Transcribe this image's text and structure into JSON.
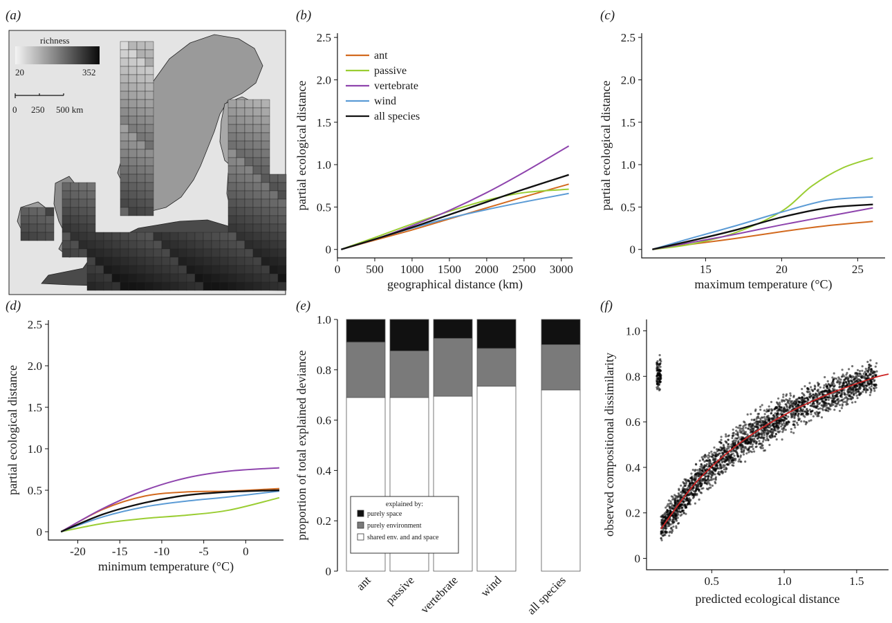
{
  "panels": {
    "a": "(a)",
    "b": "(b)",
    "c": "(c)",
    "d": "(d)",
    "e": "(e)",
    "f": "(f)"
  },
  "map": {
    "colorbar_title": "richness",
    "colorbar_min": "20",
    "colorbar_max": "352",
    "scale_ticks": [
      "0",
      "250",
      "500 km"
    ]
  },
  "colors": {
    "ant": "#d2691e",
    "passive": "#9acd32",
    "vertebrate": "#8e44ad",
    "wind": "#5b9bd5",
    "all species": "#111111",
    "purely_space": "#111111",
    "purely_environment": "#7a7a7a",
    "shared": "#ffffff",
    "fit_line": "#cc2222"
  },
  "chart_data": [
    {
      "id": "b",
      "type": "line",
      "xlabel": "geographical distance (km)",
      "ylabel": "partial ecological distance",
      "xlim": [
        0,
        3150
      ],
      "ylim": [
        -0.1,
        2.55
      ],
      "xticks": [
        0,
        500,
        1000,
        1500,
        2000,
        2500,
        3000
      ],
      "yticks": [
        0,
        0.5,
        1.0,
        1.5,
        2.0,
        2.5
      ],
      "ytick_labels": [
        "0",
        "0.5",
        "1.0",
        "1.5",
        "2.0",
        "2.5"
      ],
      "legend": "top-left",
      "series": [
        {
          "name": "ant",
          "x": [
            50,
            500,
            1000,
            1500,
            2000,
            2500,
            3100
          ],
          "y": [
            0,
            0.11,
            0.23,
            0.36,
            0.49,
            0.62,
            0.77
          ]
        },
        {
          "name": "passive",
          "x": [
            50,
            500,
            1000,
            1500,
            2000,
            2500,
            3100
          ],
          "y": [
            0,
            0.14,
            0.3,
            0.45,
            0.58,
            0.67,
            0.71
          ]
        },
        {
          "name": "vertebrate",
          "x": [
            50,
            500,
            1000,
            1500,
            2000,
            2500,
            3100
          ],
          "y": [
            0,
            0.12,
            0.28,
            0.46,
            0.67,
            0.91,
            1.22
          ]
        },
        {
          "name": "wind",
          "x": [
            50,
            500,
            1000,
            1500,
            2000,
            2500,
            3100
          ],
          "y": [
            0,
            0.12,
            0.25,
            0.37,
            0.47,
            0.56,
            0.66
          ]
        },
        {
          "name": "all species",
          "x": [
            50,
            500,
            1000,
            1500,
            2000,
            2500,
            3100
          ],
          "y": [
            0,
            0.12,
            0.26,
            0.41,
            0.56,
            0.71,
            0.88
          ]
        }
      ]
    },
    {
      "id": "c",
      "type": "line",
      "xlabel": "maximum temperature (°C)",
      "ylabel": "partial ecological distance",
      "xlim": [
        10.8,
        26.8
      ],
      "ylim": [
        -0.1,
        2.55
      ],
      "xticks": [
        15,
        20,
        25
      ],
      "yticks": [
        0,
        0.5,
        1.0,
        1.5,
        2.0,
        2.5
      ],
      "ytick_labels": [
        "0",
        "0.5",
        "1.0",
        "1.5",
        "2.0",
        "2.5"
      ],
      "series": [
        {
          "name": "ant",
          "x": [
            11.5,
            14,
            17,
            20,
            23,
            26
          ],
          "y": [
            0,
            0.06,
            0.13,
            0.21,
            0.28,
            0.33
          ]
        },
        {
          "name": "passive",
          "x": [
            11.5,
            14,
            17,
            20,
            22,
            24,
            26
          ],
          "y": [
            0,
            0.06,
            0.2,
            0.45,
            0.75,
            0.96,
            1.08
          ]
        },
        {
          "name": "vertebrate",
          "x": [
            11.5,
            14,
            17,
            20,
            23,
            26
          ],
          "y": [
            0,
            0.08,
            0.18,
            0.29,
            0.39,
            0.49
          ]
        },
        {
          "name": "wind",
          "x": [
            11.5,
            14,
            17,
            20,
            23,
            26
          ],
          "y": [
            0,
            0.13,
            0.28,
            0.44,
            0.58,
            0.62
          ]
        },
        {
          "name": "all species",
          "x": [
            11.5,
            14,
            17,
            20,
            23,
            26
          ],
          "y": [
            0,
            0.1,
            0.23,
            0.38,
            0.49,
            0.53
          ]
        }
      ]
    },
    {
      "id": "d",
      "type": "line",
      "xlabel": "minimum temperature (°C)",
      "ylabel": "partial ecological distance",
      "xlim": [
        -23.5,
        4.5
      ],
      "ylim": [
        -0.1,
        2.55
      ],
      "xticks": [
        -20,
        -15,
        -10,
        -5,
        0
      ],
      "yticks": [
        0,
        0.5,
        1.0,
        1.5,
        2.0,
        2.5
      ],
      "ytick_labels": [
        "0",
        "0.5",
        "1.0",
        "1.5",
        "2.0",
        "2.5"
      ],
      "series": [
        {
          "name": "ant",
          "x": [
            -22,
            -17,
            -12,
            -7,
            -2,
            4
          ],
          "y": [
            0,
            0.27,
            0.43,
            0.48,
            0.49,
            0.52
          ]
        },
        {
          "name": "passive",
          "x": [
            -22,
            -17,
            -12,
            -7,
            -2,
            4
          ],
          "y": [
            0,
            0.1,
            0.16,
            0.2,
            0.26,
            0.41
          ]
        },
        {
          "name": "vertebrate",
          "x": [
            -22,
            -17,
            -12,
            -7,
            -2,
            4
          ],
          "y": [
            0,
            0.28,
            0.5,
            0.65,
            0.73,
            0.77
          ]
        },
        {
          "name": "wind",
          "x": [
            -22,
            -17,
            -12,
            -7,
            -2,
            4
          ],
          "y": [
            0,
            0.18,
            0.3,
            0.37,
            0.42,
            0.49
          ]
        },
        {
          "name": "all species",
          "x": [
            -22,
            -17,
            -12,
            -7,
            -2,
            4
          ],
          "y": [
            0,
            0.21,
            0.35,
            0.44,
            0.48,
            0.5
          ]
        }
      ]
    },
    {
      "id": "e",
      "type": "bar",
      "stacked": true,
      "ylabel": "proportion of total explained deviance",
      "ylim": [
        0,
        1.0
      ],
      "yticks": [
        0,
        0.2,
        0.4,
        0.6,
        0.8,
        1.0
      ],
      "ytick_labels": [
        "0",
        "0.2",
        "0.4",
        "0.6",
        "0.8",
        "1.0"
      ],
      "categories": [
        "ant",
        "passive",
        "vertebrate",
        "wind",
        "all species"
      ],
      "legend_title": "explained by:",
      "series": [
        {
          "name": "shared env. and and space",
          "values": [
            0.69,
            0.69,
            0.695,
            0.735,
            0.72
          ]
        },
        {
          "name": "purely environment",
          "values": [
            0.22,
            0.185,
            0.23,
            0.15,
            0.18
          ]
        },
        {
          "name": "purely space",
          "values": [
            0.09,
            0.125,
            0.075,
            0.115,
            0.1
          ]
        }
      ]
    },
    {
      "id": "f",
      "type": "scatter",
      "xlabel": "predicted ecological distance",
      "ylabel": "observed compositional dissimilarity",
      "xlim": [
        0.05,
        1.72
      ],
      "ylim": [
        -0.05,
        1.05
      ],
      "xticks": [
        0.5,
        1.0,
        1.5
      ],
      "xtick_labels": [
        "0.5",
        "1.0",
        "1.5"
      ],
      "yticks": [
        0,
        0.2,
        0.4,
        0.6,
        0.8,
        1.0
      ],
      "ytick_labels": [
        "0",
        "0.2",
        "0.4",
        "0.6",
        "0.8",
        "1.0"
      ],
      "fit_curve": {
        "x": [
          0.15,
          0.4,
          0.7,
          1.0,
          1.3,
          1.6,
          1.72
        ],
        "y": [
          0.13,
          0.34,
          0.51,
          0.63,
          0.72,
          0.79,
          0.81
        ]
      }
    }
  ]
}
